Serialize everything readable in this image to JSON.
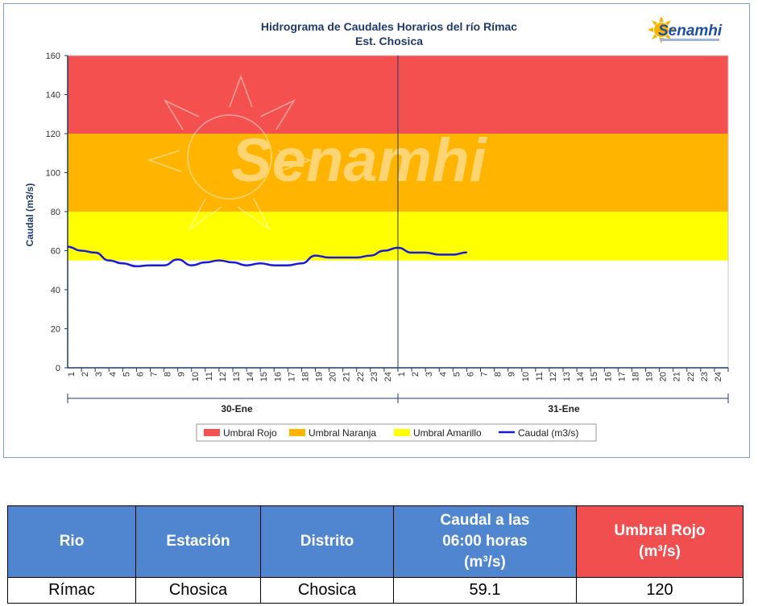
{
  "chart_data": {
    "type": "line",
    "title": "Hidrograma de Caudales Horarios del río Rímac",
    "subtitle": "Est. Chosica",
    "ylabel": "Caudal  (m3/s)",
    "ylim": [
      0,
      160
    ],
    "yticks": [
      "0",
      "20",
      "40",
      "60",
      "80",
      "100",
      "120",
      "140",
      "160"
    ],
    "hour_ticks": [
      "1",
      "2",
      "3",
      "4",
      "5",
      "6",
      "7",
      "8",
      "9",
      "10",
      "11",
      "12",
      "13",
      "14",
      "15",
      "16",
      "17",
      "18",
      "19",
      "20",
      "21",
      "22",
      "23",
      "24"
    ],
    "days": [
      "30-Ene",
      "31-Ene"
    ],
    "thresholds": [
      {
        "name": "Umbral Rojo",
        "from": 120,
        "to": 160,
        "color": "#f55050"
      },
      {
        "name": "Umbral Naranja",
        "from": 80,
        "to": 120,
        "color": "#ffb400"
      },
      {
        "name": "Umbral Amarillo",
        "from": 55,
        "to": 80,
        "color": "#ffff00"
      }
    ],
    "series": [
      {
        "name": "Caudal (m3/s)",
        "color": "#1a1adb",
        "values": [
          62,
          60,
          59,
          55,
          53.5,
          52,
          52.5,
          52.5,
          55.5,
          52.5,
          54,
          55,
          54,
          52.5,
          53.5,
          52.5,
          52.5,
          53.5,
          57.5,
          56.5,
          56.5,
          56.5,
          57.5,
          60,
          61.5,
          59,
          59,
          58,
          58,
          59.1
        ]
      }
    ],
    "legend_position": "bottom",
    "watermark": "Senamhi"
  },
  "logo": {
    "text": "Senamhi",
    "sun_color": "#f7b500"
  },
  "table": {
    "headers": [
      "Rio",
      "Estación",
      "Distrito",
      "Caudal a las 06:00 horas (m³/s)",
      "Umbral Rojo (m³/s)"
    ],
    "header_lines": {
      "caudal": [
        "Caudal a las",
        "06:00 horas",
        "(m³/s)"
      ],
      "umbral": [
        "Umbral Rojo",
        "(m³/s)"
      ]
    },
    "row": [
      "Rímac",
      "Chosica",
      "Chosica",
      "59.1",
      "120"
    ]
  }
}
